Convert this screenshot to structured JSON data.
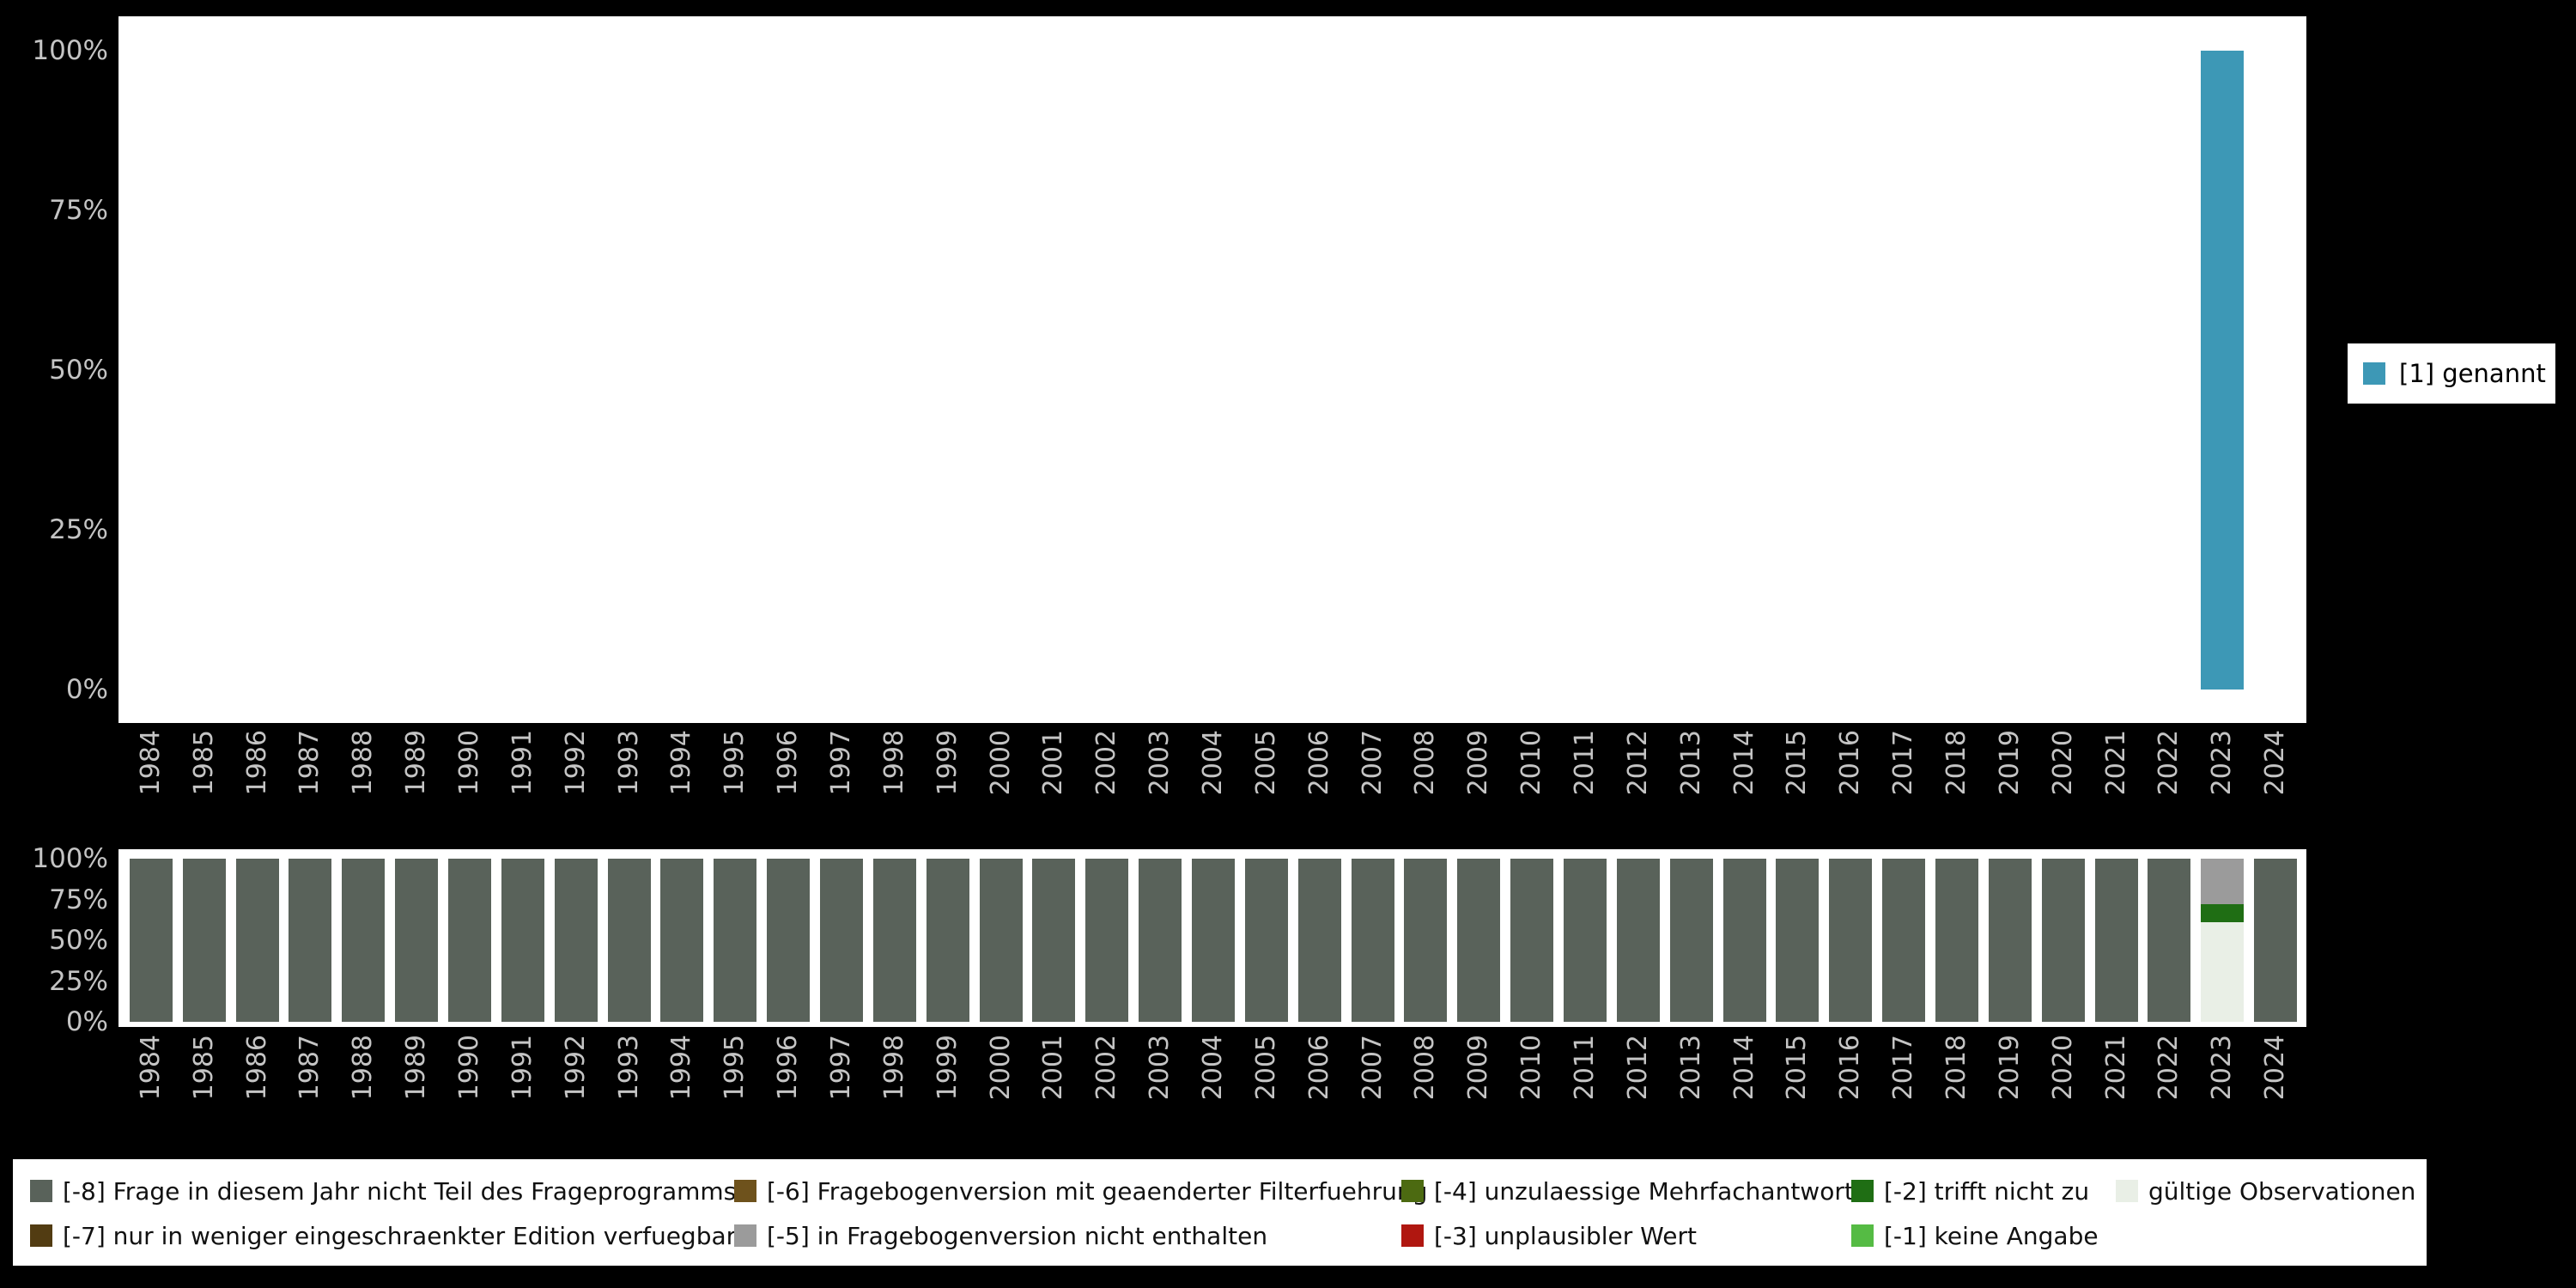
{
  "background_color": "#000000",
  "axis_text_color": "#c4c4c4",
  "colors": {
    "genannt": "#3d98b6",
    "-8": "#59625a",
    "-7": "#523c12",
    "-6": "#6e521c",
    "-5": "#9b9b9b",
    "-4": "#4c6a11",
    "-3": "#b01710",
    "-2": "#1f6e14",
    "-1": "#55bb44",
    "valid": "#e9efe6"
  },
  "chart_data": [
    {
      "type": "bar",
      "title": "",
      "xlabel": "",
      "ylabel": "",
      "ylim": [
        0,
        100
      ],
      "yticks": [
        "0%",
        "25%",
        "50%",
        "75%",
        "100%"
      ],
      "grid": false,
      "legend_position": "right",
      "categories": [
        "1984",
        "1985",
        "1986",
        "1987",
        "1988",
        "1989",
        "1990",
        "1991",
        "1992",
        "1993",
        "1994",
        "1995",
        "1996",
        "1997",
        "1998",
        "1999",
        "2000",
        "2001",
        "2002",
        "2003",
        "2004",
        "2005",
        "2006",
        "2007",
        "2008",
        "2009",
        "2010",
        "2011",
        "2012",
        "2013",
        "2014",
        "2015",
        "2016",
        "2017",
        "2018",
        "2019",
        "2020",
        "2021",
        "2022",
        "2023",
        "2024"
      ],
      "series": [
        {
          "name": "[1] genannt",
          "code": "genannt",
          "values": [
            null,
            null,
            null,
            null,
            null,
            null,
            null,
            null,
            null,
            null,
            null,
            null,
            null,
            null,
            null,
            null,
            null,
            null,
            null,
            null,
            null,
            null,
            null,
            null,
            null,
            null,
            null,
            null,
            null,
            null,
            null,
            null,
            null,
            null,
            null,
            null,
            null,
            null,
            null,
            100,
            null
          ]
        }
      ]
    },
    {
      "type": "stacked-bar",
      "title": "",
      "xlabel": "",
      "ylabel": "",
      "ylim": [
        0,
        100
      ],
      "yticks": [
        "0%",
        "25%",
        "50%",
        "75%",
        "100%"
      ],
      "grid": false,
      "categories": [
        "1984",
        "1985",
        "1986",
        "1987",
        "1988",
        "1989",
        "1990",
        "1991",
        "1992",
        "1993",
        "1994",
        "1995",
        "1996",
        "1997",
        "1998",
        "1999",
        "2000",
        "2001",
        "2002",
        "2003",
        "2004",
        "2005",
        "2006",
        "2007",
        "2008",
        "2009",
        "2010",
        "2011",
        "2012",
        "2013",
        "2014",
        "2015",
        "2016",
        "2017",
        "2018",
        "2019",
        "2020",
        "2021",
        "2022",
        "2023",
        "2024"
      ],
      "default_stack": [
        {
          "code": "-8",
          "label": "[-8] Frage in diesem Jahr nicht Teil des Frageprogramms",
          "value": 100
        }
      ],
      "special_stacks": {
        "2023": [
          {
            "code": "valid",
            "label": "gültige Observationen",
            "value": 61
          },
          {
            "code": "-2",
            "label": "[-2] trifft nicht zu",
            "value": 11
          },
          {
            "code": "-5",
            "label": "[-5] in Fragebogenversion nicht enthalten",
            "value": 28
          }
        ]
      }
    }
  ],
  "series_legend": {
    "items": [
      {
        "code": "genannt",
        "label": "[1] genannt"
      }
    ]
  },
  "missing_legend": {
    "columns": [
      [
        {
          "code": "-8",
          "label": "[-8] Frage in diesem Jahr nicht Teil des Frageprogramms"
        },
        {
          "code": "-7",
          "label": "[-7] nur in weniger eingeschraenkter Edition verfuegbar"
        }
      ],
      [
        {
          "code": "-6",
          "label": "[-6] Fragebogenversion mit geaenderter Filterfuehrung"
        },
        {
          "code": "-5",
          "label": "[-5] in Fragebogenversion nicht enthalten"
        }
      ],
      [
        {
          "code": "-4",
          "label": "[-4] unzulaessige Mehrfachantwort"
        },
        {
          "code": "-3",
          "label": "[-3] unplausibler Wert"
        }
      ],
      [
        {
          "code": "-2",
          "label": "[-2] trifft nicht zu"
        },
        {
          "code": "-1",
          "label": "[-1] keine Angabe"
        }
      ],
      [
        {
          "code": "valid",
          "label": "gültige Observationen"
        }
      ]
    ]
  }
}
